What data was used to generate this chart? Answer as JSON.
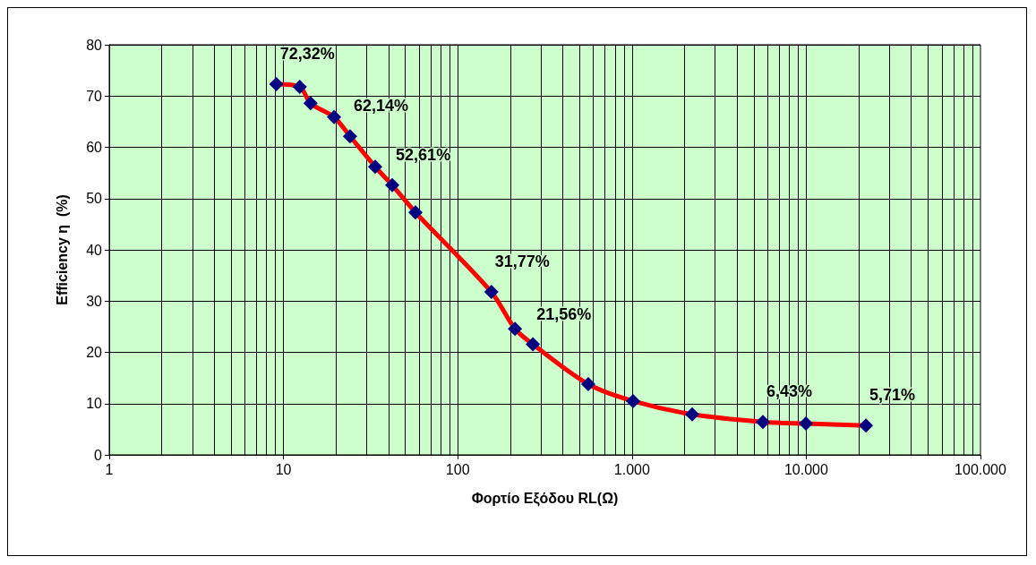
{
  "chart_data": {
    "type": "line",
    "xlabel": "Φορτίο Εξόδου RL(Ω)",
    "ylabel": "Efficiency η  (%)",
    "x": [
      9.1,
      12.4,
      14.3,
      19.5,
      24.1,
      33.6,
      42.1,
      57.2,
      156,
      213,
      270,
      561,
      1014,
      2215,
      5640,
      9960,
      22000
    ],
    "series": [
      {
        "color": "#ff0000",
        "values": [
          72.32,
          71.8,
          68.6,
          65.9,
          62.14,
          56.2,
          52.61,
          47.3,
          31.77,
          24.6,
          21.56,
          13.8,
          10.5,
          7.9,
          6.43,
          6.1,
          5.71
        ],
        "value_labels": [
          "72,32%",
          null,
          null,
          null,
          "62,14%",
          null,
          "52,61%",
          null,
          "31,77%",
          null,
          "21,56%",
          null,
          null,
          null,
          "6,43%",
          null,
          "5,71%"
        ],
        "colors": [
          "#000080",
          "#000080",
          "#000080",
          "#000080",
          "#000080",
          "#000080",
          "#000080",
          "#000080",
          "#000080",
          "#000080",
          "#000080",
          "#000080",
          "#000080",
          "#000080",
          "#000080",
          "#000080",
          "#000080"
        ]
      }
    ],
    "log": "x",
    "marker": "diamond",
    "line_style": "solid",
    "grid": true,
    "xlim": [
      1,
      100000
    ],
    "xticks": [
      1,
      10,
      100,
      {
        "value": 1000,
        "label": "1.000"
      },
      {
        "value": 10000,
        "label": "10.000"
      },
      {
        "value": 100000,
        "label": "100.000"
      }
    ],
    "ylim": [
      0,
      80
    ],
    "yticks": [
      0,
      10,
      20,
      30,
      40,
      50,
      60,
      70,
      80
    ]
  }
}
